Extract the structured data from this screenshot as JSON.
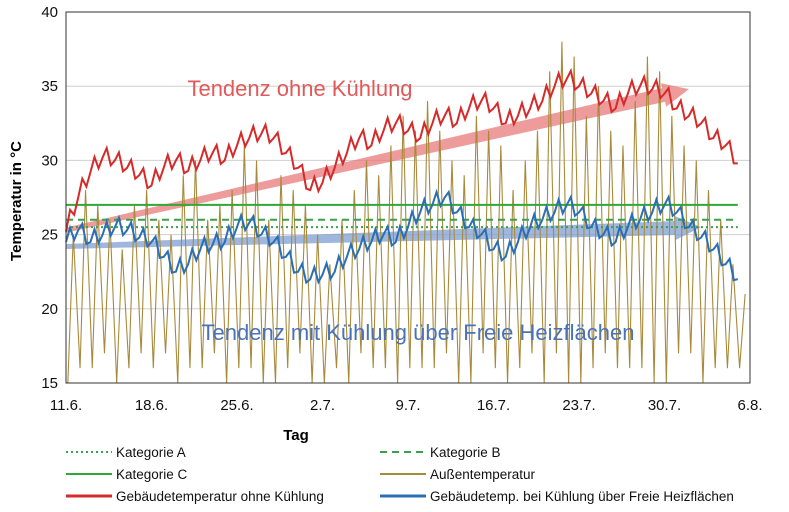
{
  "chart_data": {
    "type": "line",
    "title": "",
    "xlabel": "Tag",
    "ylabel": "Temperatur in °C",
    "ylim": [
      15,
      40
    ],
    "yticks": [
      "15",
      "20",
      "25",
      "30",
      "35",
      "40"
    ],
    "xlim": [
      0,
      56
    ],
    "xticks": [
      {
        "day": 0,
        "label": "11.6."
      },
      {
        "day": 7,
        "label": "18.6."
      },
      {
        "day": 14,
        "label": "25.6."
      },
      {
        "day": 21,
        "label": "2.7."
      },
      {
        "day": 28,
        "label": "9.7."
      },
      {
        "day": 35,
        "label": "16.7."
      },
      {
        "day": 42,
        "label": "23.7."
      },
      {
        "day": 49,
        "label": "30.7."
      },
      {
        "day": 56,
        "label": "6.8."
      }
    ],
    "grid": "horizontal",
    "legend_position": "bottom",
    "annotations": [
      {
        "text": "Tendenz ohne Kühlung",
        "color": "#e05a5a",
        "arrow": [
          [
            0,
            25.3
          ],
          [
            51,
            34.8
          ]
        ]
      },
      {
        "text": "Tendenz mit Kühlung über Freie Heizflächen",
        "color": "#4a72b8",
        "arrow": [
          [
            0,
            24.2
          ],
          [
            52,
            25.5
          ]
        ]
      }
    ],
    "series": [
      {
        "name": "Kategorie A",
        "color": "#3aa04a",
        "style": "dotted",
        "x": [
          0,
          55
        ],
        "values": [
          25.5,
          25.5
        ]
      },
      {
        "name": "Kategorie B",
        "color": "#3aa04a",
        "style": "dashed",
        "x": [
          0,
          55
        ],
        "values": [
          26,
          26
        ]
      },
      {
        "name": "Kategorie C",
        "color": "#2fa838",
        "style": "solid",
        "x": [
          0,
          55
        ],
        "values": [
          27,
          27
        ]
      },
      {
        "name": "Außentemperatur",
        "color": "#a88a3c",
        "style": "solid",
        "daily_min": [
          15,
          16,
          16,
          17,
          15,
          16,
          17,
          16,
          17,
          15,
          16,
          16,
          17,
          15,
          16,
          16,
          15,
          15,
          16,
          17,
          15,
          15,
          16,
          15,
          17,
          16,
          16,
          15,
          16,
          16,
          16,
          17,
          15,
          15,
          17,
          16,
          15,
          16,
          17,
          15,
          17,
          15,
          15,
          16,
          17,
          16,
          16,
          16,
          15,
          15,
          17,
          17,
          15,
          16,
          16,
          16
        ],
        "daily_max": [
          25,
          28,
          27,
          26,
          24,
          27,
          28,
          26,
          25,
          29,
          30,
          26,
          27,
          28,
          31,
          30,
          26,
          29,
          28,
          27,
          25,
          23,
          26,
          28,
          30,
          29,
          31,
          33,
          32,
          34,
          32,
          30,
          29,
          33,
          32,
          31,
          28,
          30,
          32,
          36,
          38,
          37,
          33,
          35,
          32,
          31,
          34,
          37,
          36,
          33,
          31,
          30,
          28,
          26,
          23,
          21
        ]
      },
      {
        "name": "Gebäudetemperatur ohne Kühlung",
        "color": "#d62a2a",
        "style": "solid",
        "x": [
          0,
          1,
          2,
          3,
          4,
          5,
          6,
          7,
          8,
          9,
          10,
          11,
          12,
          13,
          14,
          15,
          16,
          17,
          18,
          19,
          20,
          21,
          22,
          23,
          24,
          25,
          26,
          27,
          28,
          29,
          30,
          31,
          32,
          33,
          34,
          35,
          36,
          37,
          38,
          39,
          40,
          41,
          42,
          43,
          44,
          45,
          46,
          47,
          48,
          49,
          50,
          51,
          52,
          53,
          54,
          55
        ],
        "values": [
          25.2,
          27.5,
          29.2,
          30.2,
          30.0,
          29.5,
          29.0,
          28.3,
          29.5,
          30.0,
          29.3,
          30.0,
          30.5,
          30.0,
          31.0,
          31.5,
          31.8,
          31.5,
          30.5,
          29.5,
          28.0,
          28.5,
          29.5,
          30.5,
          31.5,
          31.0,
          32.0,
          32.5,
          32.0,
          31.5,
          32.5,
          33.0,
          32.5,
          33.5,
          34.0,
          33.5,
          32.5,
          33.0,
          33.5,
          34.0,
          35.0,
          35.5,
          35.0,
          34.5,
          34.0,
          33.5,
          34.5,
          35.0,
          34.8,
          34.5,
          33.5,
          33.0,
          32.5,
          31.5,
          31.0,
          29.8
        ]
      },
      {
        "name": "Gebäudetemp. bei Kühlung über Freie Heizflächen",
        "color": "#2a6fb5",
        "style": "solid",
        "x": [
          0,
          1,
          2,
          3,
          4,
          5,
          6,
          7,
          8,
          9,
          10,
          11,
          12,
          13,
          14,
          15,
          16,
          17,
          18,
          19,
          20,
          21,
          22,
          23,
          24,
          25,
          26,
          27,
          28,
          29,
          30,
          31,
          32,
          33,
          34,
          35,
          36,
          37,
          38,
          39,
          40,
          41,
          42,
          43,
          44,
          45,
          46,
          47,
          48,
          49,
          50,
          51,
          52,
          53,
          54,
          55
        ],
        "values": [
          24.5,
          25.3,
          24.5,
          25.0,
          25.5,
          25.3,
          24.8,
          24.5,
          23.5,
          22.5,
          23.0,
          24.0,
          24.3,
          24.5,
          25.5,
          25.8,
          25.0,
          24.5,
          23.5,
          22.5,
          22.0,
          22.3,
          22.5,
          23.5,
          24.0,
          24.5,
          25.0,
          24.5,
          25.5,
          26.5,
          27.0,
          27.5,
          26.5,
          25.5,
          25.0,
          24.0,
          23.5,
          24.5,
          25.5,
          26.0,
          26.5,
          27.0,
          26.5,
          25.5,
          25.0,
          24.5,
          25.5,
          26.0,
          26.5,
          27.0,
          26.5,
          25.5,
          24.8,
          24.0,
          23.0,
          22.0
        ]
      }
    ]
  }
}
